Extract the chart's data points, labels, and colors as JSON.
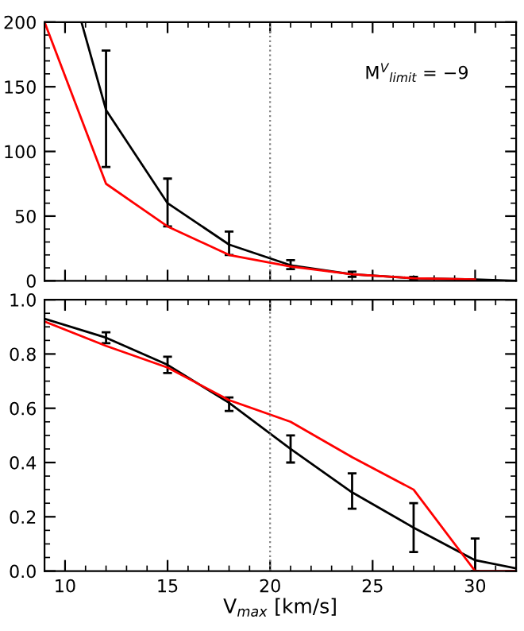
{
  "chart_data": [
    {
      "type": "line",
      "xlim": [
        9,
        32
      ],
      "ylim": [
        0,
        200
      ],
      "yticks": [
        0,
        50,
        100,
        150,
        200
      ],
      "tick_labels": "y",
      "grid": false,
      "legend": false,
      "annotations": [
        "M$^{V}$$_{limit}$ = −9"
      ],
      "ref_lines": [
        {
          "axis": "x",
          "value": 20,
          "line_style": "dotted",
          "color": "#808080"
        }
      ],
      "series": [
        {
          "color": "#000000",
          "x": [
            10.8,
            12,
            15,
            18,
            21,
            24,
            27,
            30,
            32
          ],
          "values": [
            200,
            132,
            60,
            28,
            12,
            5,
            2,
            1,
            0
          ],
          "errors": [
            null,
            [
              88,
              178
            ],
            [
              42,
              79
            ],
            [
              20,
              38
            ],
            [
              9,
              16
            ],
            [
              3,
              7
            ],
            [
              1,
              3
            ],
            null,
            null
          ]
        },
        {
          "color": "#ff0000",
          "x": [
            9,
            12,
            15,
            18,
            21,
            24,
            27,
            30
          ],
          "values": [
            200,
            75,
            42,
            20,
            11,
            5,
            2,
            1
          ]
        }
      ]
    },
    {
      "type": "line",
      "xlim": [
        9,
        32
      ],
      "ylim": [
        0,
        1
      ],
      "xticks": [
        10,
        15,
        20,
        25,
        30
      ],
      "yticks": [
        {
          "value": 0,
          "label": "0.0"
        },
        {
          "value": 0.2,
          "label": "0.2"
        },
        {
          "value": 0.4,
          "label": "0.4"
        },
        {
          "value": 0.6,
          "label": "0.6"
        },
        {
          "value": 0.8,
          "label": "0.8"
        },
        {
          "value": 1,
          "label": "1.0"
        }
      ],
      "grid": false,
      "legend": false,
      "xlabel": "V$_{max}$ [km/s]",
      "ref_lines": [
        {
          "axis": "x",
          "value": 20,
          "line_style": "dotted",
          "color": "#808080"
        }
      ],
      "series": [
        {
          "color": "#000000",
          "x": [
            9,
            12,
            15,
            18,
            21,
            24,
            27,
            30,
            32
          ],
          "values": [
            0.93,
            0.86,
            0.76,
            0.62,
            0.45,
            0.29,
            0.16,
            0.04,
            0.01
          ],
          "errors": [
            null,
            [
              0.84,
              0.88
            ],
            [
              0.73,
              0.79
            ],
            [
              0.59,
              0.64
            ],
            [
              0.4,
              0.5
            ],
            [
              0.23,
              0.36
            ],
            [
              0.07,
              0.25
            ],
            [
              0,
              0.12
            ],
            null
          ]
        },
        {
          "color": "#ff0000",
          "x": [
            9,
            12,
            15,
            18,
            21,
            24,
            27,
            30,
            32
          ],
          "values": [
            0.92,
            0.83,
            0.75,
            0.63,
            0.55,
            0.42,
            0.3,
            0,
            0
          ]
        }
      ]
    }
  ]
}
